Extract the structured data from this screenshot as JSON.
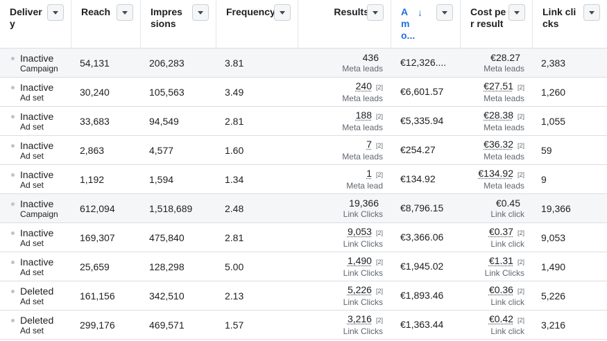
{
  "columns": [
    {
      "key": "delivery",
      "label": "Delivery"
    },
    {
      "key": "reach",
      "label": "Reach"
    },
    {
      "key": "impressions",
      "label": "Impressions"
    },
    {
      "key": "frequency",
      "label": "Frequency"
    },
    {
      "key": "results",
      "label": "Results"
    },
    {
      "key": "amount",
      "label": "Amo...",
      "sort": "descending"
    },
    {
      "key": "cost_per_result",
      "label": "Cost per result"
    },
    {
      "key": "link_clicks",
      "label": "Link clicks"
    }
  ],
  "rows": [
    {
      "status": "Inactive",
      "level": "Campaign",
      "reach": "54,131",
      "impressions": "206,283",
      "frequency": "3.81",
      "results": "436",
      "results_fn": "",
      "results_type": "Meta leads",
      "amount": "€12,326....",
      "cpr": "€28.27",
      "cpr_fn": "",
      "cpr_type": "Meta leads",
      "link_clicks": "2,383"
    },
    {
      "status": "Inactive",
      "level": "Ad set",
      "reach": "30,240",
      "impressions": "105,563",
      "frequency": "3.49",
      "results": "240",
      "results_fn": "[2]",
      "results_type": "Meta leads",
      "amount": "€6,601.57",
      "cpr": "€27.51",
      "cpr_fn": "[2]",
      "cpr_type": "Meta leads",
      "link_clicks": "1,260"
    },
    {
      "status": "Inactive",
      "level": "Ad set",
      "reach": "33,683",
      "impressions": "94,549",
      "frequency": "2.81",
      "results": "188",
      "results_fn": "[2]",
      "results_type": "Meta leads",
      "amount": "€5,335.94",
      "cpr": "€28.38",
      "cpr_fn": "[2]",
      "cpr_type": "Meta leads",
      "link_clicks": "1,055"
    },
    {
      "status": "Inactive",
      "level": "Ad set",
      "reach": "2,863",
      "impressions": "4,577",
      "frequency": "1.60",
      "results": "7",
      "results_fn": "[2]",
      "results_type": "Meta leads",
      "amount": "€254.27",
      "cpr": "€36.32",
      "cpr_fn": "[2]",
      "cpr_type": "Meta leads",
      "link_clicks": "59"
    },
    {
      "status": "Inactive",
      "level": "Ad set",
      "reach": "1,192",
      "impressions": "1,594",
      "frequency": "1.34",
      "results": "1",
      "results_fn": "[2]",
      "results_type": "Meta lead",
      "amount": "€134.92",
      "cpr": "€134.92",
      "cpr_fn": "[2]",
      "cpr_type": "Meta leads",
      "link_clicks": "9"
    },
    {
      "status": "Inactive",
      "level": "Campaign",
      "reach": "612,094",
      "impressions": "1,518,689",
      "frequency": "2.48",
      "results": "19,366",
      "results_fn": "",
      "results_type": "Link Clicks",
      "amount": "€8,796.15",
      "cpr": "€0.45",
      "cpr_fn": "",
      "cpr_type": "Link click",
      "link_clicks": "19,366"
    },
    {
      "status": "Inactive",
      "level": "Ad set",
      "reach": "169,307",
      "impressions": "475,840",
      "frequency": "2.81",
      "results": "9,053",
      "results_fn": "[2]",
      "results_type": "Link Clicks",
      "amount": "€3,366.06",
      "cpr": "€0.37",
      "cpr_fn": "[2]",
      "cpr_type": "Link click",
      "link_clicks": "9,053"
    },
    {
      "status": "Inactive",
      "level": "Ad set",
      "reach": "25,659",
      "impressions": "128,298",
      "frequency": "5.00",
      "results": "1,490",
      "results_fn": "[2]",
      "results_type": "Link Clicks",
      "amount": "€1,945.02",
      "cpr": "€1.31",
      "cpr_fn": "[2]",
      "cpr_type": "Link Clicks",
      "link_clicks": "1,490"
    },
    {
      "status": "Deleted",
      "level": "Ad set",
      "reach": "161,156",
      "impressions": "342,510",
      "frequency": "2.13",
      "results": "5,226",
      "results_fn": "[2]",
      "results_type": "Link Clicks",
      "amount": "€1,893.46",
      "cpr": "€0.36",
      "cpr_fn": "[2]",
      "cpr_type": "Link click",
      "link_clicks": "5,226"
    },
    {
      "status": "Deleted",
      "level": "Ad set",
      "reach": "299,176",
      "impressions": "469,571",
      "frequency": "1.57",
      "results": "3,216",
      "results_fn": "[2]",
      "results_type": "Link Clicks",
      "amount": "€1,363.44",
      "cpr": "€0.42",
      "cpr_fn": "[2]",
      "cpr_type": "Link click",
      "link_clicks": "3,216"
    }
  ]
}
